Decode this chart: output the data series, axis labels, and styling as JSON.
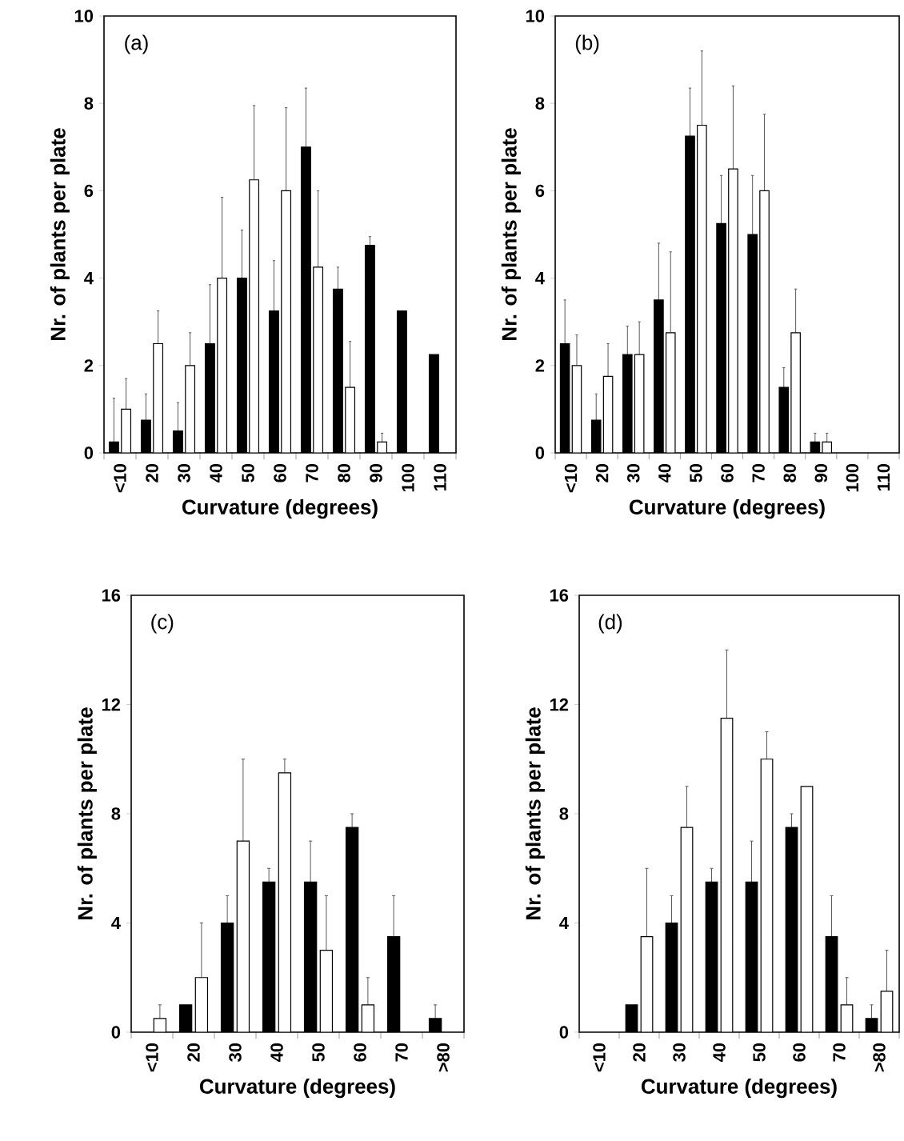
{
  "chart_data": [
    {
      "type": "bar",
      "annotations": [
        "(a)"
      ],
      "xlabel": "Curvature (degrees)",
      "ylabel": "Nr. of plants per plate",
      "categories": [
        "<10",
        "20",
        "30",
        "40",
        "50",
        "60",
        "70",
        "80",
        "90",
        "100",
        "110"
      ],
      "ylim": [
        0,
        10
      ],
      "yticks": [
        0,
        2,
        4,
        6,
        8,
        10
      ],
      "series": [
        {
          "color": "#000000",
          "values": [
            0.25,
            0.75,
            0.5,
            2.5,
            4,
            3.25,
            7,
            3.75,
            4.75,
            3.25,
            2.25
          ],
          "errors": [
            [
              0.25,
              1.25
            ],
            [
              0.75,
              1.35
            ],
            [
              0.5,
              1.15
            ],
            [
              2.5,
              3.85
            ],
            [
              4,
              5.1
            ],
            [
              3.25,
              4.4
            ],
            [
              7,
              8.35
            ],
            [
              3.75,
              4.25
            ],
            [
              4.75,
              4.95
            ],
            null,
            null
          ]
        },
        {
          "color": "#ffffff",
          "values": [
            1,
            2.5,
            2,
            4,
            6.25,
            6,
            4.25,
            1.5,
            0.25,
            null,
            null
          ],
          "errors": [
            [
              1,
              1.7
            ],
            [
              2.5,
              3.25
            ],
            [
              2,
              2.75
            ],
            [
              4,
              5.85
            ],
            [
              6.25,
              7.95
            ],
            [
              6,
              7.9
            ],
            [
              4.25,
              6
            ],
            [
              1.5,
              2.55
            ],
            [
              0.25,
              0.45
            ],
            null,
            null
          ]
        }
      ]
    },
    {
      "type": "bar",
      "annotations": [
        "(b)"
      ],
      "xlabel": "Curvature (degrees)",
      "ylabel": "Nr. of plants per plate",
      "categories": [
        "<10",
        "20",
        "30",
        "40",
        "50",
        "60",
        "70",
        "80",
        "90",
        "100",
        "110"
      ],
      "ylim": [
        0,
        10
      ],
      "yticks": [
        0,
        2,
        4,
        6,
        8,
        10
      ],
      "series": [
        {
          "color": "#000000",
          "values": [
            2.5,
            0.75,
            2.25,
            3.5,
            7.25,
            5.25,
            5,
            1.5,
            0.25,
            null,
            null
          ],
          "errors": [
            [
              2.5,
              3.5
            ],
            [
              0.75,
              1.35
            ],
            [
              2.25,
              2.9
            ],
            [
              3.5,
              4.8
            ],
            [
              7.25,
              8.35
            ],
            [
              5.25,
              6.35
            ],
            [
              5,
              6.35
            ],
            [
              1.5,
              1.95
            ],
            [
              0.25,
              0.45
            ],
            null,
            null
          ]
        },
        {
          "color": "#ffffff",
          "values": [
            2,
            1.75,
            2.25,
            2.75,
            7.5,
            6.5,
            6,
            2.75,
            0.25,
            null,
            null
          ],
          "errors": [
            [
              2,
              2.7
            ],
            [
              1.75,
              2.5
            ],
            [
              2.25,
              3
            ],
            [
              2.75,
              4.6
            ],
            [
              7.5,
              9.2
            ],
            [
              6.5,
              8.4
            ],
            [
              6,
              7.75
            ],
            [
              2.75,
              3.75
            ],
            [
              0.25,
              0.45
            ],
            null,
            null
          ]
        }
      ]
    },
    {
      "type": "bar",
      "annotations": [
        "(c)"
      ],
      "xlabel": "Curvature (degrees)",
      "ylabel": "Nr. of plants per plate",
      "categories": [
        "<10",
        "20",
        "30",
        "40",
        "50",
        "60",
        "70",
        ">80"
      ],
      "ylim": [
        0,
        16
      ],
      "yticks": [
        0,
        4,
        8,
        12,
        16
      ],
      "series": [
        {
          "color": "#000000",
          "values": [
            null,
            1,
            4,
            5.5,
            5.5,
            7.5,
            3.5,
            0.5
          ],
          "errors": [
            null,
            null,
            [
              4,
              5
            ],
            [
              5.5,
              6
            ],
            [
              5.5,
              7
            ],
            [
              7.5,
              8
            ],
            [
              3.5,
              5
            ],
            [
              0.5,
              1
            ]
          ]
        },
        {
          "color": "#ffffff",
          "values": [
            0.5,
            2,
            7,
            9.5,
            3,
            1,
            null,
            null
          ],
          "errors": [
            [
              0.5,
              1
            ],
            [
              2,
              4
            ],
            [
              7,
              10
            ],
            [
              9.5,
              10
            ],
            [
              3,
              5
            ],
            [
              1,
              2
            ],
            null,
            null
          ]
        }
      ]
    },
    {
      "type": "bar",
      "annotations": [
        "(d)"
      ],
      "xlabel": "Curvature (degrees)",
      "ylabel": "Nr. of plants per plate",
      "categories": [
        "<10",
        "20",
        "30",
        "40",
        "50",
        "60",
        "70",
        ">80"
      ],
      "ylim": [
        0,
        16
      ],
      "yticks": [
        0,
        4,
        8,
        12,
        16
      ],
      "series": [
        {
          "color": "#000000",
          "values": [
            null,
            1,
            4,
            5.5,
            5.5,
            7.5,
            3.5,
            0.5
          ],
          "errors": [
            null,
            null,
            [
              4,
              5
            ],
            [
              5.5,
              6
            ],
            [
              5.5,
              7
            ],
            [
              7.5,
              8
            ],
            [
              3.5,
              5
            ],
            [
              0.5,
              1
            ]
          ]
        },
        {
          "color": "#ffffff",
          "values": [
            null,
            3.5,
            7.5,
            11.5,
            10,
            9,
            1,
            1.5
          ],
          "errors": [
            null,
            [
              3.5,
              6
            ],
            [
              7.5,
              9
            ],
            [
              11.5,
              14
            ],
            [
              10,
              11
            ],
            null,
            [
              1,
              2
            ],
            [
              1.5,
              3
            ]
          ]
        }
      ]
    }
  ]
}
